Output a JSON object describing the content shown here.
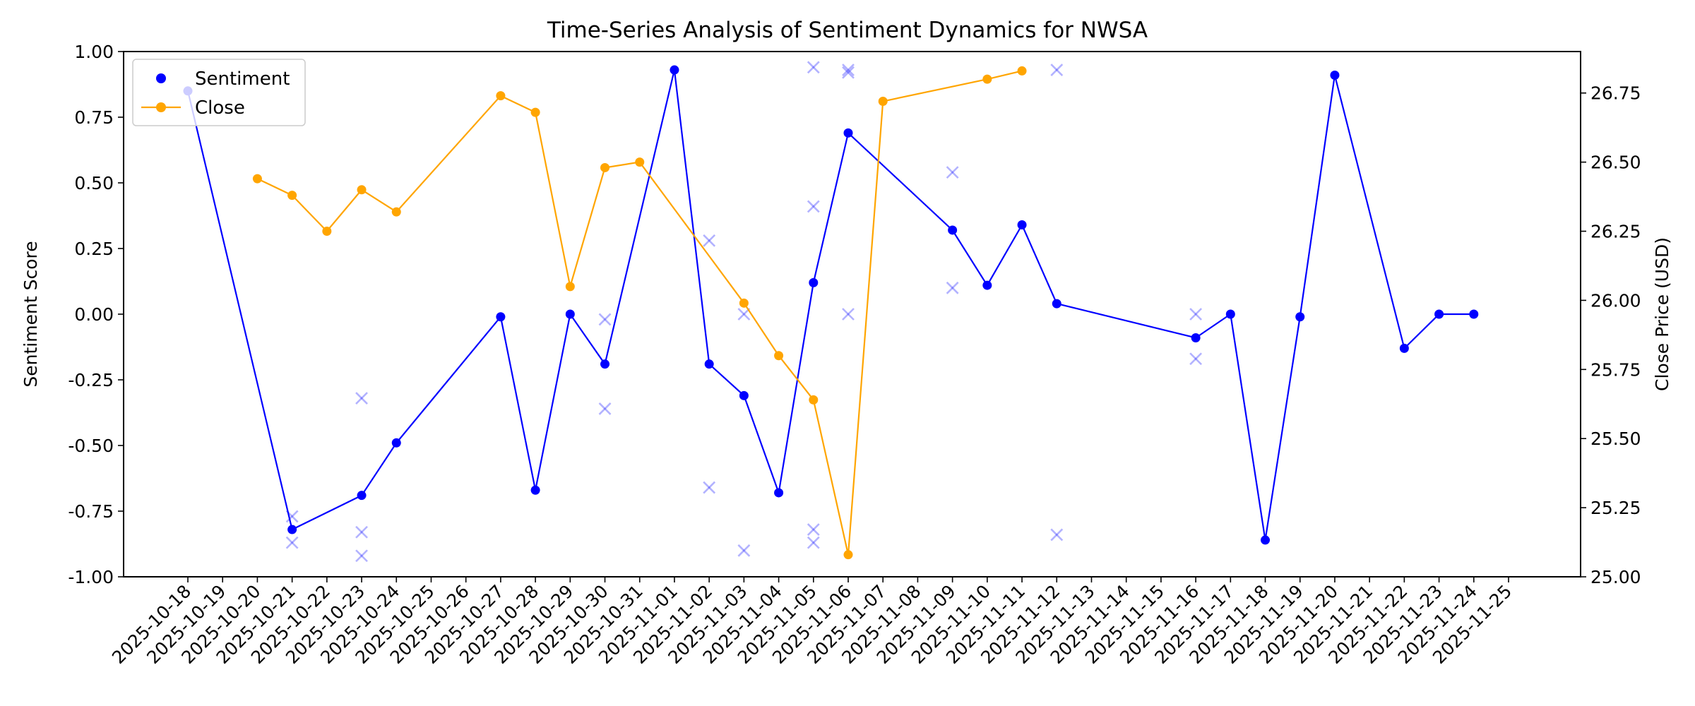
{
  "chart_data": {
    "type": "line",
    "title": "Time-Series Analysis of Sentiment Dynamics for NWSA",
    "ylabel": "Sentiment Score",
    "y2label": "Close Price (USD)",
    "ylim": [
      -1.0,
      1.0
    ],
    "y2lim": [
      25.0,
      26.9
    ],
    "yticks": [
      "-1.00",
      "-0.75",
      "-0.50",
      "-0.25",
      "0.00",
      "0.25",
      "0.50",
      "0.75",
      "1.00"
    ],
    "y2ticks": [
      "25.00",
      "25.25",
      "25.50",
      "25.75",
      "26.00",
      "26.25",
      "26.50",
      "26.75"
    ],
    "grid": false,
    "legend_position": "top-left",
    "categories": [
      "2025-10-18",
      "2025-10-19",
      "2025-10-20",
      "2025-10-21",
      "2025-10-22",
      "2025-10-23",
      "2025-10-24",
      "2025-10-25",
      "2025-10-26",
      "2025-10-27",
      "2025-10-28",
      "2025-10-29",
      "2025-10-30",
      "2025-10-31",
      "2025-11-01",
      "2025-11-02",
      "2025-11-03",
      "2025-11-04",
      "2025-11-05",
      "2025-11-06",
      "2025-11-07",
      "2025-11-08",
      "2025-11-09",
      "2025-11-10",
      "2025-11-11",
      "2025-11-12",
      "2025-11-13",
      "2025-11-14",
      "2025-11-15",
      "2025-11-16",
      "2025-11-17",
      "2025-11-18",
      "2025-11-19",
      "2025-11-20",
      "2025-11-21",
      "2025-11-22",
      "2025-11-23",
      "2025-11-24",
      "2025-11-25"
    ],
    "series": [
      {
        "name": "Sentiment",
        "color": "#0000ff",
        "axis": "left",
        "style": "line-with-dot-markers",
        "points": [
          {
            "x": "2025-10-18",
            "y": 0.85
          },
          {
            "x": "2025-10-21",
            "y": -0.82
          },
          {
            "x": "2025-10-23",
            "y": -0.69
          },
          {
            "x": "2025-10-24",
            "y": -0.49
          },
          {
            "x": "2025-10-27",
            "y": -0.01
          },
          {
            "x": "2025-10-28",
            "y": -0.67
          },
          {
            "x": "2025-10-29",
            "y": 0.0
          },
          {
            "x": "2025-10-30",
            "y": -0.19
          },
          {
            "x": "2025-11-01",
            "y": 0.93
          },
          {
            "x": "2025-11-02",
            "y": -0.19
          },
          {
            "x": "2025-11-03",
            "y": -0.31
          },
          {
            "x": "2025-11-04",
            "y": -0.68
          },
          {
            "x": "2025-11-05",
            "y": 0.12
          },
          {
            "x": "2025-11-06",
            "y": 0.69
          },
          {
            "x": "2025-11-09",
            "y": 0.32
          },
          {
            "x": "2025-11-10",
            "y": 0.11
          },
          {
            "x": "2025-11-11",
            "y": 0.34
          },
          {
            "x": "2025-11-12",
            "y": 0.04
          },
          {
            "x": "2025-11-16",
            "y": -0.09
          },
          {
            "x": "2025-11-17",
            "y": 0.0
          },
          {
            "x": "2025-11-18",
            "y": -0.86
          },
          {
            "x": "2025-11-19",
            "y": -0.01
          },
          {
            "x": "2025-11-20",
            "y": 0.91
          },
          {
            "x": "2025-11-22",
            "y": -0.13
          },
          {
            "x": "2025-11-23",
            "y": 0.0
          },
          {
            "x": "2025-11-24",
            "y": 0.0
          }
        ]
      },
      {
        "name": "Close",
        "color": "#ffa500",
        "axis": "right",
        "style": "line-with-dot-markers",
        "points": [
          {
            "x": "2025-10-20",
            "y": 26.44
          },
          {
            "x": "2025-10-21",
            "y": 26.38
          },
          {
            "x": "2025-10-22",
            "y": 26.25
          },
          {
            "x": "2025-10-23",
            "y": 26.4
          },
          {
            "x": "2025-10-24",
            "y": 26.32
          },
          {
            "x": "2025-10-27",
            "y": 26.74
          },
          {
            "x": "2025-10-28",
            "y": 26.68
          },
          {
            "x": "2025-10-29",
            "y": 26.05
          },
          {
            "x": "2025-10-30",
            "y": 26.48
          },
          {
            "x": "2025-10-31",
            "y": 26.5
          },
          {
            "x": "2025-11-03",
            "y": 25.99
          },
          {
            "x": "2025-11-04",
            "y": 25.8
          },
          {
            "x": "2025-11-05",
            "y": 25.64
          },
          {
            "x": "2025-11-06",
            "y": 25.08
          },
          {
            "x": "2025-11-07",
            "y": 26.72
          },
          {
            "x": "2025-11-10",
            "y": 26.8
          },
          {
            "x": "2025-11-11",
            "y": 26.83
          }
        ]
      }
    ],
    "scatter_points": {
      "color": "#0000ff",
      "alpha": 0.3,
      "marker": "x",
      "points": [
        {
          "x": "2025-10-21",
          "y": -0.77
        },
        {
          "x": "2025-10-21",
          "y": -0.87
        },
        {
          "x": "2025-10-23",
          "y": -0.32
        },
        {
          "x": "2025-10-23",
          "y": -0.83
        },
        {
          "x": "2025-10-23",
          "y": -0.92
        },
        {
          "x": "2025-10-30",
          "y": -0.02
        },
        {
          "x": "2025-10-30",
          "y": -0.36
        },
        {
          "x": "2025-11-02",
          "y": 0.28
        },
        {
          "x": "2025-11-02",
          "y": -0.66
        },
        {
          "x": "2025-11-03",
          "y": 0.0
        },
        {
          "x": "2025-11-03",
          "y": -0.9
        },
        {
          "x": "2025-11-05",
          "y": 0.94
        },
        {
          "x": "2025-11-05",
          "y": 0.41
        },
        {
          "x": "2025-11-05",
          "y": -0.82
        },
        {
          "x": "2025-11-05",
          "y": -0.87
        },
        {
          "x": "2025-11-06",
          "y": 0.93
        },
        {
          "x": "2025-11-06",
          "y": 0.92
        },
        {
          "x": "2025-11-06",
          "y": 0.0
        },
        {
          "x": "2025-11-09",
          "y": 0.54
        },
        {
          "x": "2025-11-09",
          "y": 0.1
        },
        {
          "x": "2025-11-12",
          "y": 0.93
        },
        {
          "x": "2025-11-12",
          "y": -0.84
        },
        {
          "x": "2025-11-16",
          "y": 0.0
        },
        {
          "x": "2025-11-16",
          "y": -0.17
        }
      ]
    }
  }
}
